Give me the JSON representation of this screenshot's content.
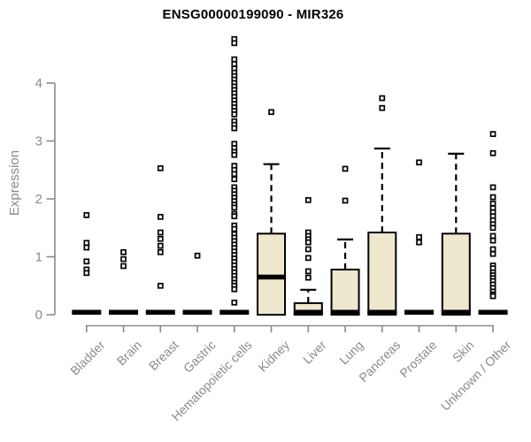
{
  "chart_data": {
    "type": "boxplot",
    "title": "ENSG00000199090 - MIR326",
    "xlabel": "",
    "ylabel": "Expression",
    "yticks": [
      0,
      1,
      2,
      3,
      4
    ],
    "ylim": [
      0,
      4.9
    ],
    "grid": false,
    "legend": "none",
    "categories": [
      "Bladder",
      "Brain",
      "Breast",
      "Gastric",
      "Hematopoietic cells",
      "Kidney",
      "Liver",
      "Lung",
      "Pancreas",
      "Prostate",
      "Skin",
      "Unknown / Other"
    ],
    "boxes": [
      {
        "category": "Bladder",
        "q1": 0,
        "median": 0,
        "q3": 0,
        "whisker_low": 0,
        "whisker_high": 0,
        "outliers": [
          1.72,
          1.24,
          1.16,
          0.92,
          0.78,
          0.72
        ]
      },
      {
        "category": "Brain",
        "q1": 0,
        "median": 0,
        "q3": 0,
        "whisker_low": 0,
        "whisker_high": 0,
        "outliers": [
          1.08,
          0.96,
          0.84
        ]
      },
      {
        "category": "Breast",
        "q1": 0,
        "median": 0,
        "q3": 0,
        "whisker_low": 0,
        "whisker_high": 0,
        "outliers": [
          2.53,
          1.69,
          1.42,
          1.31,
          1.19,
          1.08,
          0.5
        ]
      },
      {
        "category": "Gastric",
        "q1": 0,
        "median": 0,
        "q3": 0,
        "whisker_low": 0,
        "whisker_high": 0,
        "outliers": [
          1.02
        ]
      },
      {
        "category": "Hematopoietic cells",
        "q1": 0,
        "median": 0,
        "q3": 0,
        "whisker_low": 0,
        "whisker_high": 0,
        "outliers": [
          4.76,
          4.69,
          4.41,
          4.33,
          4.25,
          4.18,
          4.12,
          4.06,
          4.0,
          3.94,
          3.88,
          3.82,
          3.76,
          3.7,
          3.64,
          3.58,
          3.52,
          3.46,
          3.34,
          3.28,
          3.22,
          2.95,
          2.88,
          2.81,
          2.76,
          2.57,
          2.5,
          2.43,
          2.34,
          2.2,
          2.14,
          2.08,
          2.02,
          1.96,
          1.9,
          1.85,
          1.74,
          1.7,
          1.54,
          1.48,
          1.39,
          1.33,
          1.27,
          1.21,
          1.15,
          1.09,
          1.03,
          0.97,
          0.91,
          0.85,
          0.79,
          0.73,
          0.67,
          0.61,
          0.55,
          0.5,
          0.44,
          0.21
        ]
      },
      {
        "category": "Kidney",
        "q1": 0,
        "median": 0.65,
        "q3": 1.4,
        "whisker_low": 0,
        "whisker_high": 2.6,
        "outliers": [
          3.5
        ]
      },
      {
        "category": "Liver",
        "q1": 0,
        "median": 0.02,
        "q3": 0.2,
        "whisker_low": 0,
        "whisker_high": 0.43,
        "outliers": [
          1.98,
          1.42,
          1.36,
          1.3,
          1.25,
          1.13,
          0.98,
          0.75,
          0.64
        ]
      },
      {
        "category": "Lung",
        "q1": 0,
        "median": 0.02,
        "q3": 0.78,
        "whisker_low": 0,
        "whisker_high": 1.3,
        "outliers": [
          2.52,
          1.97
        ]
      },
      {
        "category": "Pancreas",
        "q1": 0,
        "median": 0.02,
        "q3": 1.42,
        "whisker_low": 0,
        "whisker_high": 2.87,
        "outliers": [
          3.74,
          3.57
        ]
      },
      {
        "category": "Prostate",
        "q1": 0,
        "median": 0,
        "q3": 0,
        "whisker_low": 0,
        "whisker_high": 0,
        "outliers": [
          2.63,
          1.34,
          1.25
        ]
      },
      {
        "category": "Skin",
        "q1": 0,
        "median": 0.02,
        "q3": 1.4,
        "whisker_low": 0,
        "whisker_high": 2.78,
        "outliers": []
      },
      {
        "category": "Unknown / Other",
        "q1": 0,
        "median": 0,
        "q3": 0,
        "whisker_low": 0,
        "whisker_high": 0,
        "outliers": [
          3.12,
          2.79,
          2.2,
          2.03,
          1.92,
          1.84,
          1.77,
          1.7,
          1.63,
          1.56,
          1.5,
          1.36,
          1.28,
          1.13,
          1.05,
          0.85,
          0.8,
          0.73,
          0.68,
          0.63,
          0.58,
          0.52,
          0.46,
          0.4,
          0.35,
          0.32
        ]
      }
    ],
    "colors": {
      "box_fill": "#ede8ce",
      "box_border": "#000000",
      "median": "#000000",
      "marker": "#000000",
      "axis": "#8a8a8a",
      "background": "#ffffff"
    }
  }
}
